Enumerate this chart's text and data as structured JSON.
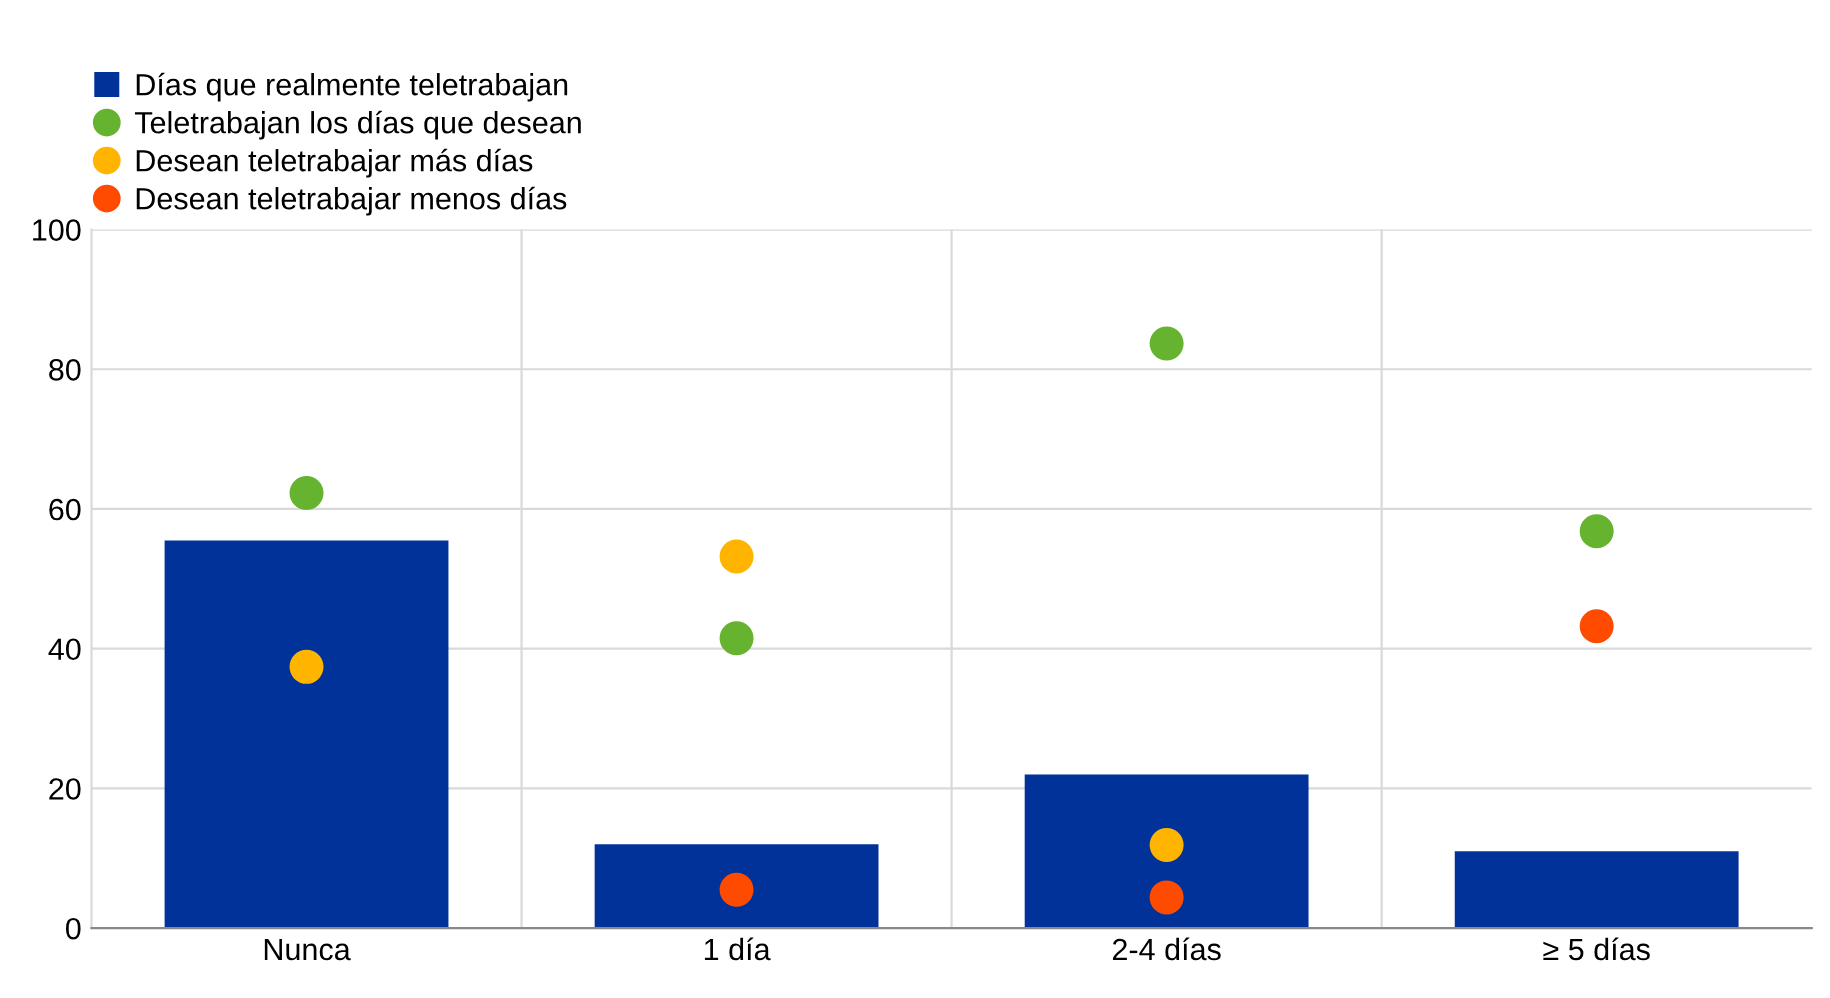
{
  "chart_data": {
    "type": "bar",
    "categories": [
      "Nunca",
      "1 día",
      "2-4 días",
      "≥ 5 días"
    ],
    "series": [
      {
        "name": "Días que realmente teletrabajan",
        "color": "#003299",
        "values": [
          55.5,
          12,
          22,
          11
        ]
      },
      {
        "name": "Teletrabajan los días que desean",
        "type": "scatter",
        "color": "#65b32e",
        "values": [
          62.3,
          41.5,
          83.7,
          56.8
        ]
      },
      {
        "name": "Desean teletrabajar más días",
        "type": "scatter",
        "color": "#ffb400",
        "values": [
          37.4,
          53.2,
          11.9,
          null
        ]
      },
      {
        "name": "Desean teletrabajar menos días",
        "type": "scatter",
        "color": "#ff4b00",
        "values": [
          null,
          5.5,
          4.4,
          43.2
        ]
      }
    ],
    "ylim": [
      0,
      100
    ],
    "yticks": [
      0,
      20,
      40,
      60,
      80,
      100
    ],
    "grid": true,
    "legend": "top left",
    "marker": "circle"
  }
}
